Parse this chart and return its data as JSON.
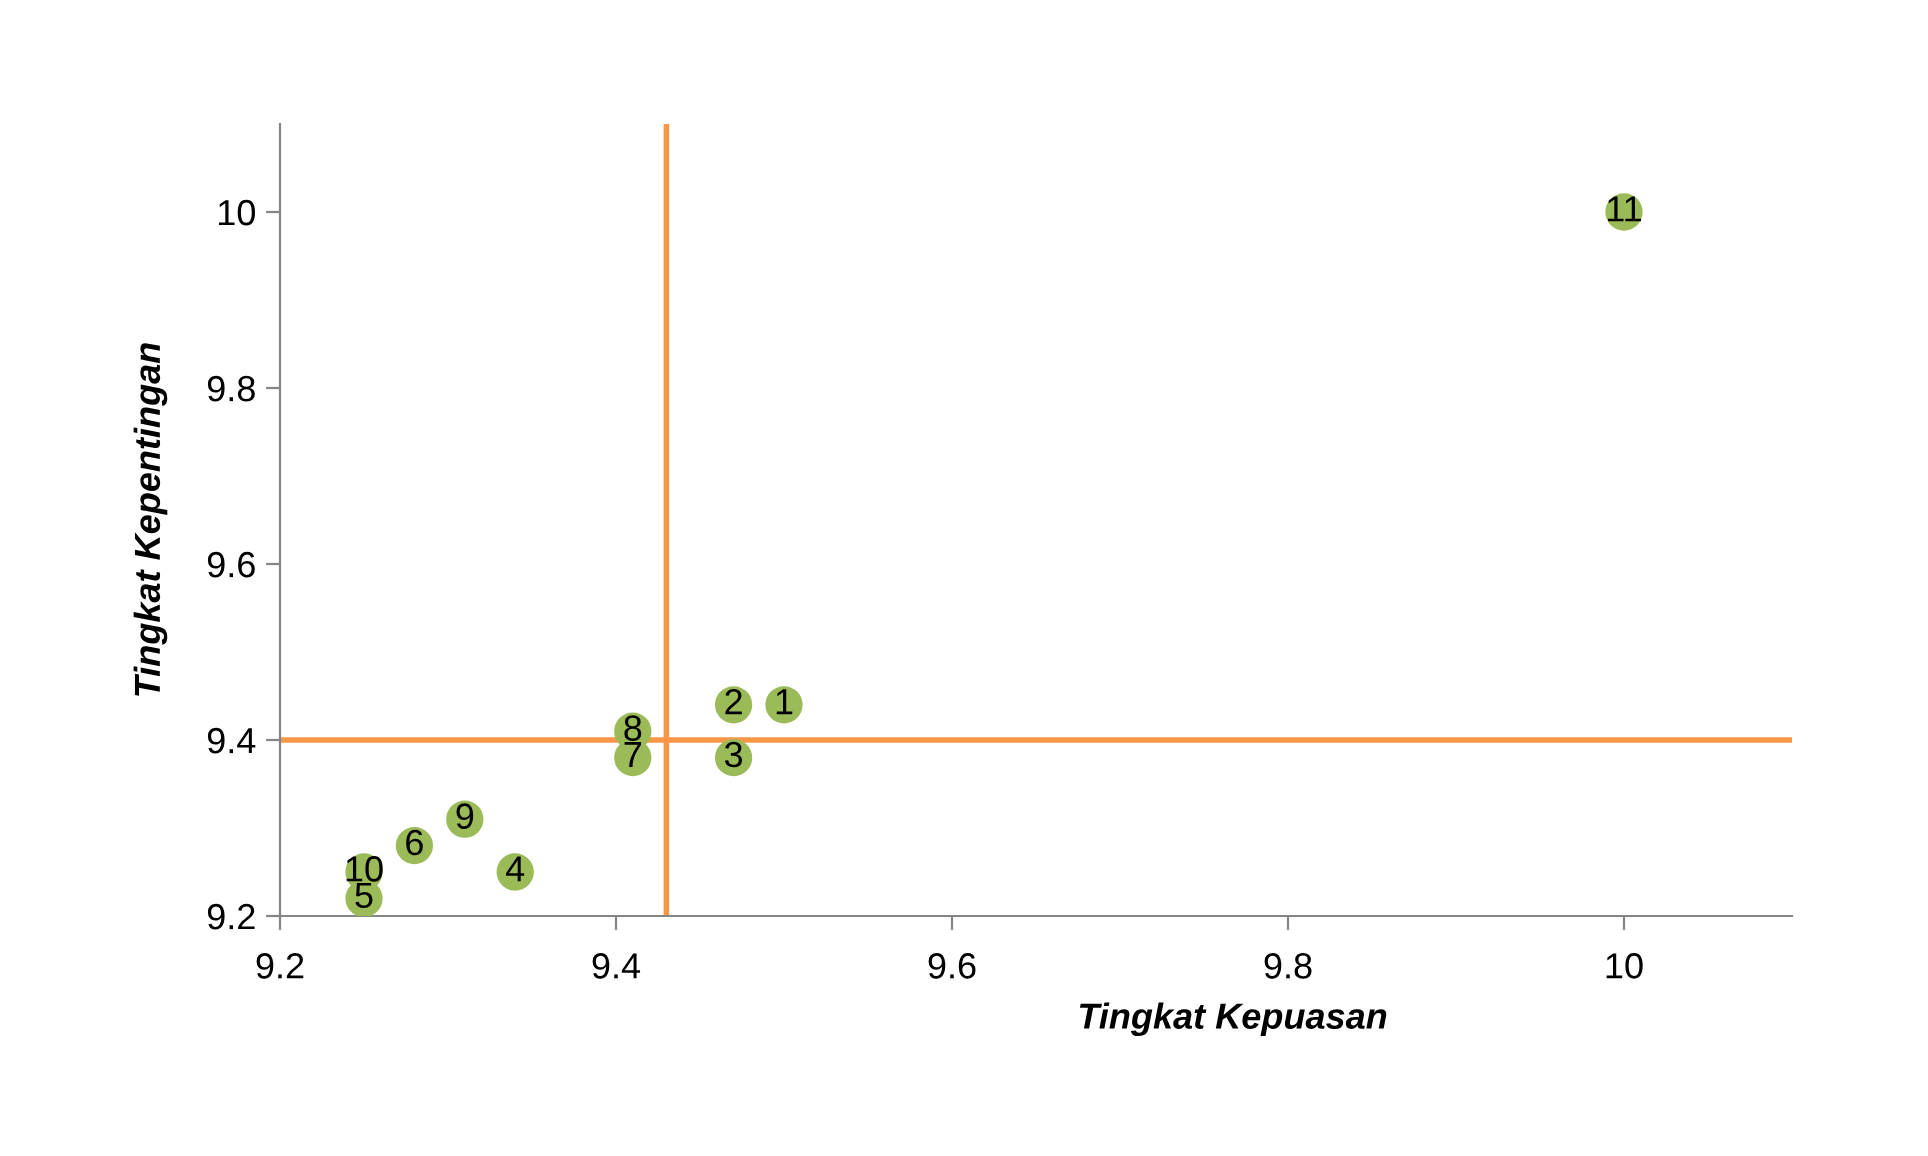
{
  "chart_data": {
    "type": "scatter",
    "xlabel": "Tingkat Kepuasan",
    "ylabel": "Tingkat Kepentingan",
    "x": [
      9.5,
      9.47,
      9.47,
      9.34,
      9.25,
      9.28,
      9.41,
      9.41,
      9.31,
      9.25,
      10
    ],
    "series": [
      {
        "color": "#9bbb59",
        "values": [
          9.44,
          9.44,
          9.38,
          9.25,
          9.22,
          9.28,
          9.38,
          9.41,
          9.31,
          9.25,
          10
        ]
      }
    ],
    "annotations": [
      {
        "text": "1",
        "x": 9.5,
        "y": 9.44
      },
      {
        "text": "2",
        "x": 9.47,
        "y": 9.44
      },
      {
        "text": "3",
        "x": 9.47,
        "y": 9.38
      },
      {
        "text": "4",
        "x": 9.34,
        "y": 9.25
      },
      {
        "text": "5",
        "x": 9.25,
        "y": 9.22
      },
      {
        "text": "6",
        "x": 9.28,
        "y": 9.28
      },
      {
        "text": "7",
        "x": 9.41,
        "y": 9.38
      },
      {
        "text": "8",
        "x": 9.41,
        "y": 9.41
      },
      {
        "text": "9",
        "x": 9.31,
        "y": 9.31
      },
      {
        "text": "10",
        "x": 9.25,
        "y": 9.25
      },
      {
        "text": "11",
        "x": 10,
        "y": 10
      }
    ],
    "ref_lines": [
      {
        "axis": "x",
        "value": 9.43,
        "color": "#f79646"
      },
      {
        "axis": "y",
        "value": 9.4,
        "color": "#f79646"
      }
    ],
    "xlim": [
      9.2,
      10.1
    ],
    "ylim": [
      9.2,
      10.1
    ],
    "xticks": [
      9.2,
      9.4,
      9.6,
      9.8,
      10
    ],
    "yticks": [
      9.2,
      9.4,
      9.6,
      9.8,
      10
    ],
    "marker": "circle",
    "grid": false,
    "legend": false
  }
}
